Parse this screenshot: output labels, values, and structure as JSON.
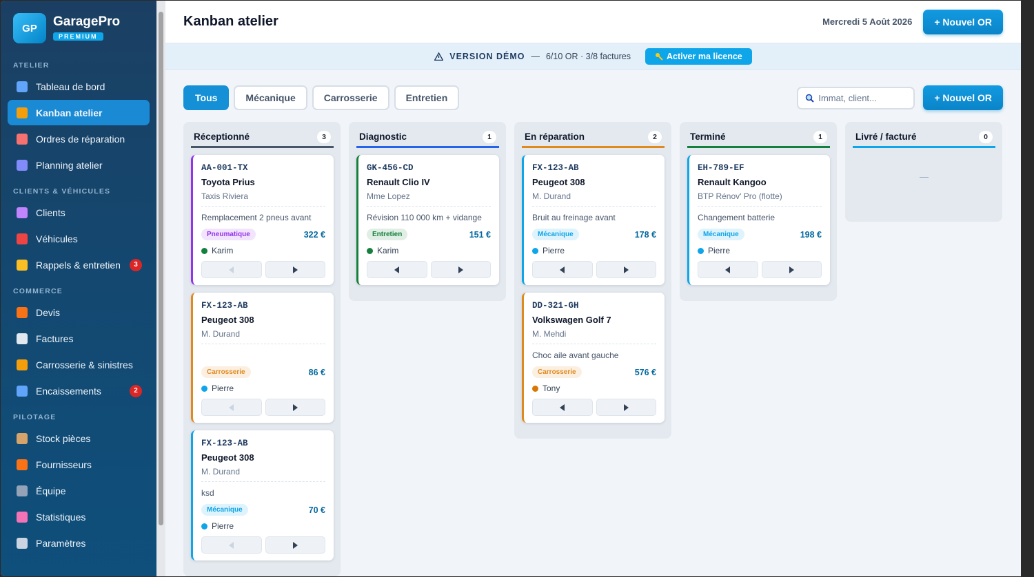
{
  "sidebar": {
    "logo": "GP",
    "brand": "GaragePro",
    "badge": "PREMIUM",
    "sections": [
      {
        "label": "ATELIER",
        "items": [
          {
            "label": "Tableau de bord"
          },
          {
            "label": "Kanban atelier",
            "active": true
          },
          {
            "label": "Ordres de réparation"
          },
          {
            "label": "Planning atelier"
          }
        ]
      },
      {
        "label": "CLIENTS & VÉHICULES",
        "items": [
          {
            "label": "Clients"
          },
          {
            "label": "Véhicules"
          },
          {
            "label": "Rappels & entretien",
            "count": 3
          }
        ]
      },
      {
        "label": "COMMERCE",
        "items": [
          {
            "label": "Devis"
          },
          {
            "label": "Factures"
          },
          {
            "label": "Carrosserie & sinistres"
          },
          {
            "label": "Encaissements",
            "count": 2
          }
        ]
      },
      {
        "label": "PILOTAGE",
        "items": [
          {
            "label": "Stock pièces"
          },
          {
            "label": "Fournisseurs"
          },
          {
            "label": "Équipe"
          },
          {
            "label": "Statistiques"
          },
          {
            "label": "Paramètres"
          }
        ]
      }
    ]
  },
  "header": {
    "title": "Kanban atelier",
    "date": "Mercredi 5 Août 2026",
    "button": "+ Nouvel OR"
  },
  "banner": {
    "label": "VERSION DÉMO",
    "separator": "—",
    "text": "6/10 OR · 3/8 factures",
    "button": "Activer ma licence"
  },
  "toolbar": {
    "filters": [
      {
        "label": "Tous",
        "active": true
      },
      {
        "label": "Mécanique"
      },
      {
        "label": "Carrosserie"
      },
      {
        "label": "Entretien"
      }
    ],
    "search_placeholder": "Immat, client...",
    "button": "+ Nouvel OR"
  },
  "columns": [
    {
      "title": "Réceptionné",
      "count": 3,
      "color": "#475569",
      "cards": [
        {
          "plate": "AA-001-TX",
          "model": "Toyota Prius",
          "client": "Taxis Riviera",
          "task": "Remplacement 2 pneus avant",
          "tag": "Pneumatique",
          "price": "322 €",
          "tech": "Karim",
          "color": "#9333ea",
          "tech_color": "#15803d",
          "first": true
        },
        {
          "plate": "FX-123-AB",
          "model": "Peugeot 308",
          "client": "M. Durand",
          "task": "",
          "tag": "Carrosserie",
          "price": "86 €",
          "tech": "Pierre",
          "color": "#e08a1e",
          "tech_color": "#0ea5e9",
          "first": true
        },
        {
          "plate": "FX-123-AB",
          "model": "Peugeot 308",
          "client": "M. Durand",
          "task": "ksd",
          "tag": "Mécanique",
          "price": "70 €",
          "tech": "Pierre",
          "color": "#0ea5e9",
          "tech_color": "#0ea5e9",
          "first": true
        }
      ]
    },
    {
      "title": "Diagnostic",
      "count": 1,
      "color": "#2563eb",
      "cards": [
        {
          "plate": "GK-456-CD",
          "model": "Renault Clio IV",
          "client": "Mme Lopez",
          "task": "Révision 110 000 km + vidange",
          "tag": "Entretien",
          "price": "151 €",
          "tech": "Karim",
          "color": "#15803d",
          "tech_color": "#15803d"
        }
      ]
    },
    {
      "title": "En réparation",
      "count": 2,
      "color": "#e08a1e",
      "cards": [
        {
          "plate": "FX-123-AB",
          "model": "Peugeot 308",
          "client": "M. Durand",
          "task": "Bruit au freinage avant",
          "tag": "Mécanique",
          "price": "178 €",
          "tech": "Pierre",
          "color": "#0ea5e9",
          "tech_color": "#0ea5e9"
        },
        {
          "plate": "DD-321-GH",
          "model": "Volkswagen Golf 7",
          "client": "M. Mehdi",
          "task": "Choc aile avant gauche",
          "tag": "Carrosserie",
          "price": "576 €",
          "tech": "Tony",
          "color": "#e08a1e",
          "tech_color": "#d97706"
        }
      ]
    },
    {
      "title": "Terminé",
      "count": 1,
      "color": "#15803d",
      "cards": [
        {
          "plate": "EH-789-EF",
          "model": "Renault Kangoo",
          "client": "BTP Rénov' Pro (flotte)",
          "task": "Changement batterie",
          "tag": "Mécanique",
          "price": "198 €",
          "tech": "Pierre",
          "color": "#0ea5e9",
          "tech_color": "#0ea5e9"
        }
      ]
    },
    {
      "title": "Livré / facturé",
      "count": 0,
      "color": "#0ea5e9",
      "cards": [],
      "empty": "—"
    }
  ]
}
